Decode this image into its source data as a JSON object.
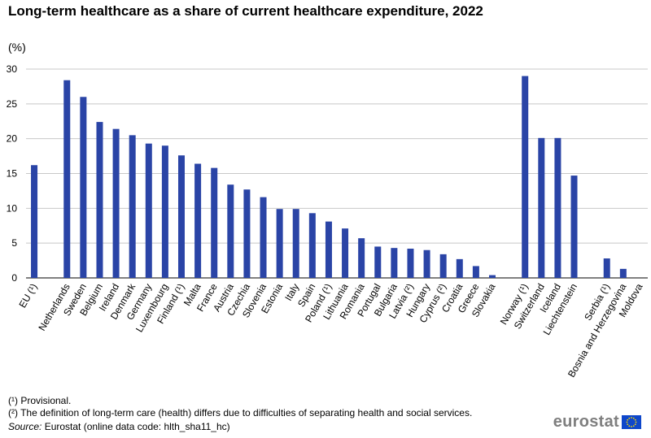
{
  "title": "Long-term healthcare as a share of current healthcare expenditure, 2022",
  "unit": "(%)",
  "footnotes": [
    "(¹) Provisional.",
    "(²) The definition of long-term care (health) differs due to difficulties of separating health and social services."
  ],
  "source_label": "Source:",
  "source_text": "Eurostat (online data code: hlth_sha11_hc)",
  "logo_text": "eurostat",
  "colors": {
    "bar": "#2a44a6",
    "grid": "#c8c8c8",
    "axis": "#000000"
  },
  "chart_data": {
    "type": "bar",
    "title": "Long-term healthcare as a share of current healthcare expenditure, 2022",
    "xlabel": "",
    "ylabel": "(%)",
    "ylim": [
      0,
      30
    ],
    "yticks": [
      0,
      5,
      10,
      15,
      20,
      25,
      30
    ],
    "grid": true,
    "categories": [
      "EU (¹)",
      "",
      "Netherlands",
      "Sweden",
      "Belgium",
      "Ireland",
      "Denmark",
      "Germany",
      "Luxembourg",
      "Finland (¹)",
      "Malta",
      "France",
      "Austria",
      "Czechia",
      "Slovenia",
      "Estonia",
      "Italy",
      "Spain",
      "Poland (¹)",
      "Lithuania",
      "Romania",
      "Portugal",
      "Bulgaria",
      "Latvia (²)",
      "Hungary",
      "Cyprus (²)",
      "Croatia",
      "Greece",
      "Slovakia",
      "",
      "Norway (¹)",
      "Switzerland",
      "Iceland",
      "Liechtenstein",
      "",
      "Serbia (¹)",
      "Bosnia and Herzegovina",
      "Moldova"
    ],
    "values": [
      16.2,
      null,
      28.4,
      26.0,
      22.4,
      21.4,
      20.5,
      19.3,
      19.0,
      17.6,
      16.4,
      15.8,
      13.4,
      12.7,
      11.6,
      9.9,
      9.9,
      9.3,
      8.1,
      7.1,
      5.7,
      4.5,
      4.3,
      4.2,
      4.0,
      3.4,
      2.7,
      1.7,
      0.4,
      null,
      29.0,
      20.1,
      20.1,
      14.7,
      null,
      2.8,
      1.3,
      0.0
    ]
  }
}
